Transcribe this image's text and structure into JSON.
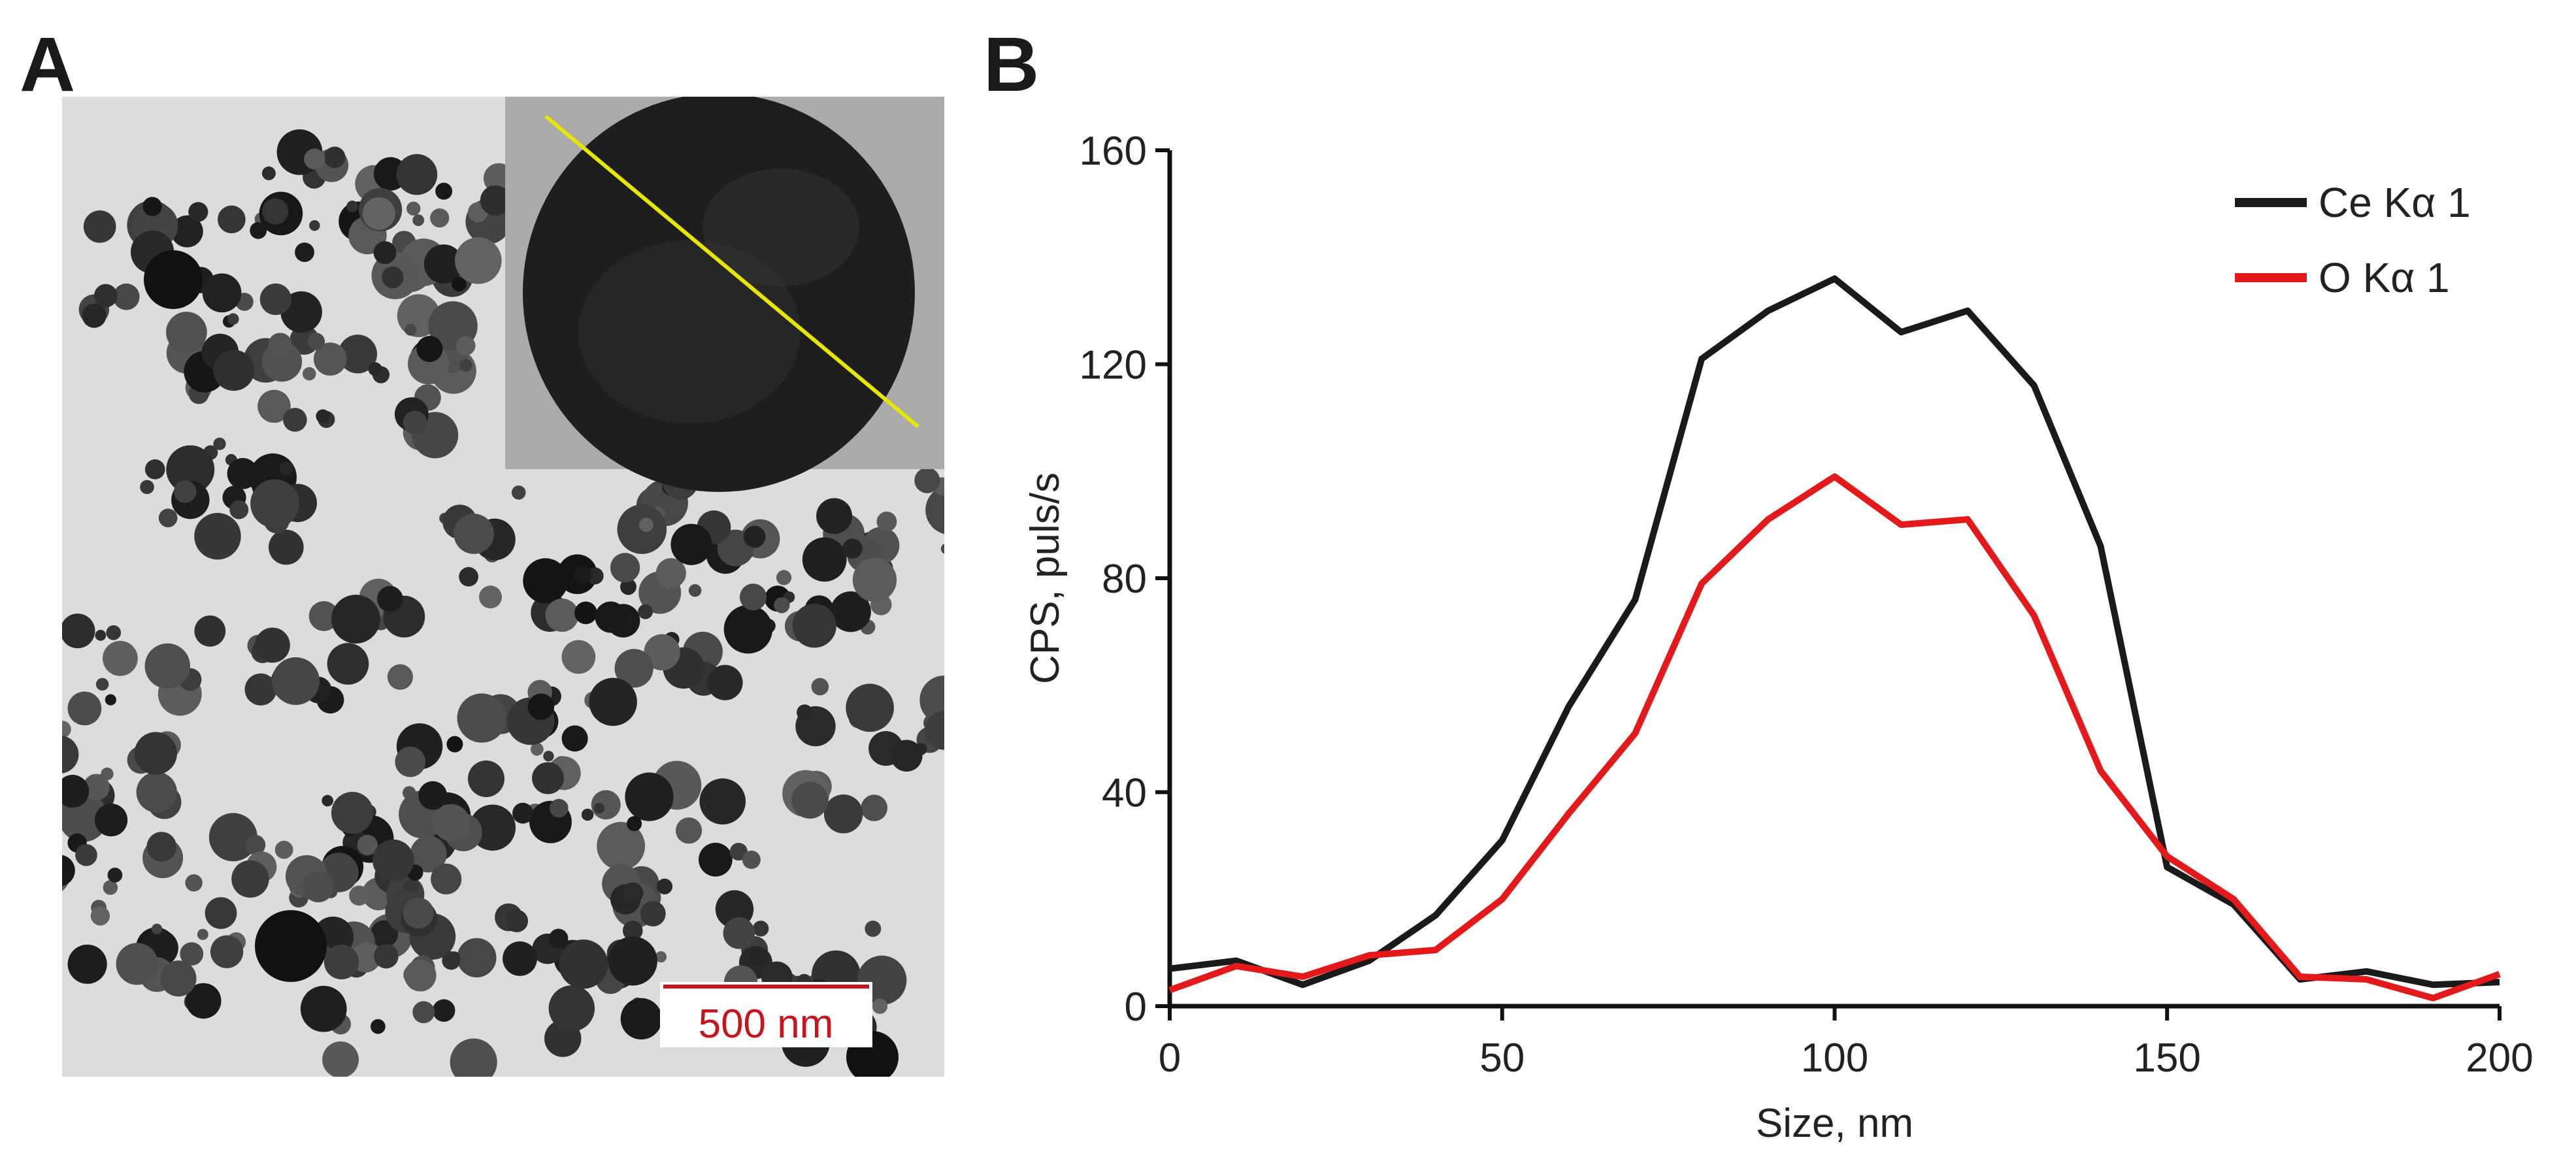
{
  "panels": {
    "a_label": "A",
    "b_label": "B"
  },
  "micrograph": {
    "scale_bar_label": "500 nm",
    "scale_bar_color": "#c8141e",
    "line_scan_color": "#e6e600"
  },
  "chart_data": {
    "type": "line",
    "title": "",
    "xlabel": "Size, nm",
    "ylabel": "CPS, puls/s",
    "xlim": [
      0,
      200
    ],
    "ylim": [
      0,
      160
    ],
    "xticks": [
      0,
      50,
      100,
      150,
      200
    ],
    "yticks": [
      0,
      40,
      80,
      120,
      160
    ],
    "grid": false,
    "legend_position": "top-right",
    "x": [
      0,
      10,
      20,
      30,
      40,
      50,
      60,
      70,
      80,
      90,
      100,
      110,
      120,
      130,
      140,
      150,
      160,
      170,
      180,
      190,
      200
    ],
    "series": [
      {
        "name": "Ce Kα 1",
        "color": "#1a1a1a",
        "values": [
          7,
          8.5,
          4,
          8.5,
          17,
          31,
          56,
          76,
          121,
          130,
          136,
          126,
          130,
          116,
          86,
          26,
          19,
          5,
          6.5,
          4,
          4.5
        ]
      },
      {
        "name": "O Kα 1",
        "color": "#e3191c",
        "values": [
          3,
          7.5,
          5.5,
          9.5,
          10.5,
          20,
          36,
          51,
          79,
          91,
          99,
          90,
          91,
          73,
          44,
          28,
          20,
          5.5,
          5,
          1.5,
          6
        ]
      }
    ]
  }
}
